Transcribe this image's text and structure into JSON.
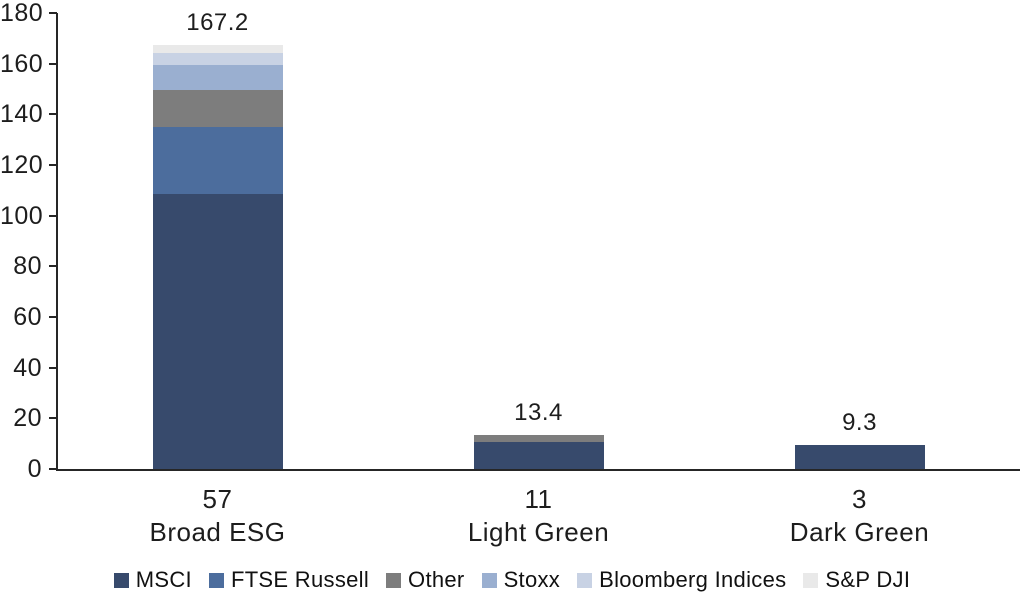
{
  "chart_data": {
    "type": "bar",
    "stacked": true,
    "title": "",
    "xlabel": "",
    "ylabel": "",
    "grid": false,
    "legend_position": "bottom",
    "ylim": [
      0,
      180
    ],
    "ytick_step": 20,
    "yticks": [
      "0",
      "20",
      "40",
      "60",
      "80",
      "100",
      "120",
      "140",
      "160",
      "180"
    ],
    "categories": [
      {
        "count_label": "57",
        "name": "Broad ESG",
        "total_label": "167.2"
      },
      {
        "count_label": "11",
        "name": "Light Green",
        "total_label": "13.4"
      },
      {
        "count_label": "3",
        "name": "Dark Green",
        "total_label": "9.3"
      }
    ],
    "totals": [
      167.2,
      13.4,
      9.3
    ],
    "series": [
      {
        "name": "MSCI",
        "color": "#374A6C",
        "values": [
          108.5,
          10.8,
          9.3
        ]
      },
      {
        "name": "FTSE Russell",
        "color": "#4C6D9D",
        "values": [
          26.5,
          0,
          0
        ]
      },
      {
        "name": "Other",
        "color": "#7D7D7D",
        "values": [
          14.5,
          2.6,
          0
        ]
      },
      {
        "name": "Stoxx",
        "color": "#9AAFD0",
        "values": [
          9.8,
          0,
          0
        ]
      },
      {
        "name": "Bloomberg Indices",
        "color": "#C8D2E4",
        "values": [
          4.9,
          0,
          0
        ]
      },
      {
        "name": "S&P DJI",
        "color": "#E9E9E9",
        "values": [
          3.0,
          0,
          0
        ]
      }
    ]
  },
  "axis": {
    "line_color": "#262626"
  },
  "text_color": "#1d1d1d"
}
